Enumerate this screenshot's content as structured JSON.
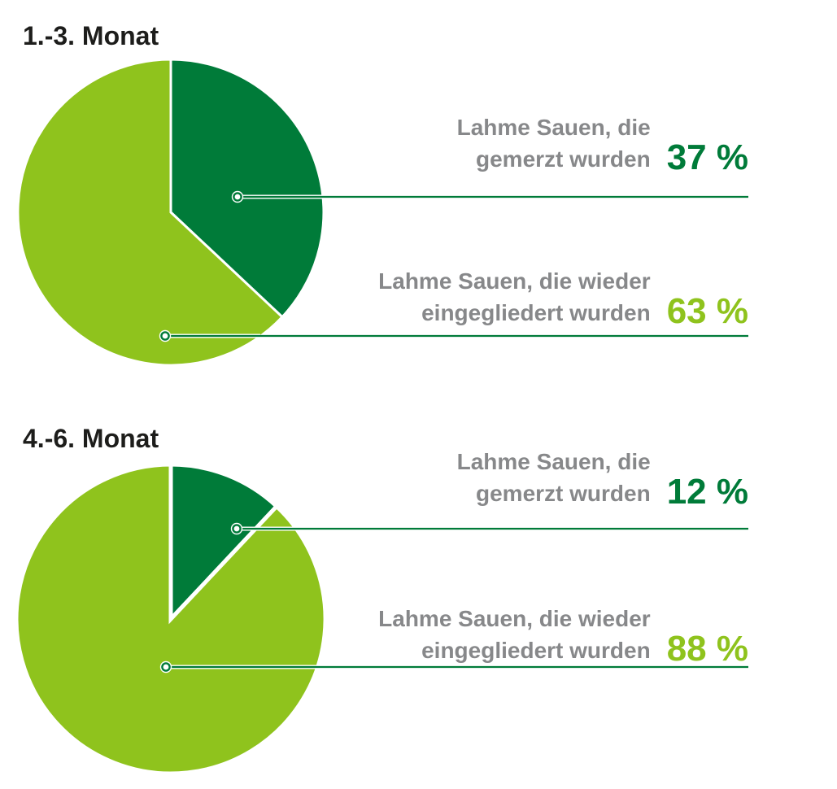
{
  "colors": {
    "dark_green": "#007B39",
    "light_green": "#8FC31D",
    "label_gray": "#87888A",
    "title_black": "#1D1D1B",
    "leader_line_green": "#007B39",
    "background": "#FFFFFF"
  },
  "chart_data": [
    {
      "type": "pie",
      "title": "1.-3. Monat",
      "unit": "%",
      "legend_position": "right",
      "slices": [
        {
          "label": "Lahme Sauen, die gemerzt wurden",
          "label_lines": [
            "Lahme Sauen, die",
            "gemerzt wurden"
          ],
          "value": 37,
          "value_label": "37 %",
          "color": "#007B39",
          "color_name": "dark-green"
        },
        {
          "label": "Lahme Sauen, die wieder eingegliedert wurden",
          "label_lines": [
            "Lahme Sauen, die wieder",
            "eingegliedert wurden"
          ],
          "value": 63,
          "value_label": "63 %",
          "color": "#8FC31D",
          "color_name": "light-green"
        }
      ]
    },
    {
      "type": "pie",
      "title": "4.-6. Monat",
      "unit": "%",
      "legend_position": "right",
      "slices": [
        {
          "label": "Lahme Sauen, die gemerzt wurden",
          "label_lines": [
            "Lahme Sauen, die",
            "gemerzt wurden"
          ],
          "value": 12,
          "value_label": "12 %",
          "color": "#007B39",
          "color_name": "dark-green"
        },
        {
          "label": "Lahme Sauen, die wieder eingegliedert wurden",
          "label_lines": [
            "Lahme Sauen, die wieder",
            "eingegliedert wurden"
          ],
          "value": 88,
          "value_label": "88 %",
          "color": "#8FC31D",
          "color_name": "light-green"
        }
      ]
    }
  ]
}
